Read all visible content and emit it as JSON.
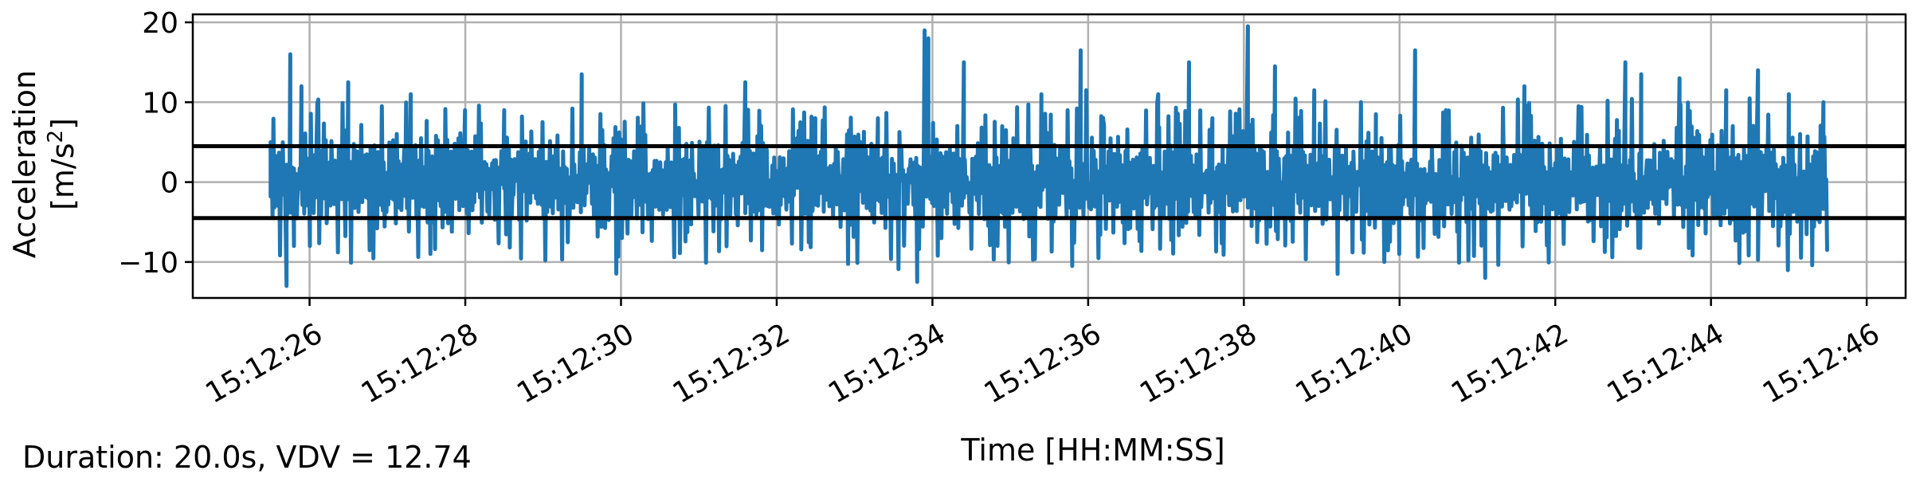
{
  "chart_data": {
    "type": "line",
    "xlabel": "Time [HH:MM:SS]",
    "ylabel_line1": "Acceleration",
    "ylabel_line2_prefix": "[m/s",
    "ylabel_line2_sup": "2",
    "ylabel_line2_suffix": "]",
    "x_start_seconds": 25.5,
    "x_end_seconds": 45.5,
    "xlim_seconds": [
      24.5,
      46.5
    ],
    "ylim": [
      -14.5,
      21
    ],
    "x_ticks": [
      "15:12:26",
      "15:12:28",
      "15:12:30",
      "15:12:32",
      "15:12:34",
      "15:12:36",
      "15:12:38",
      "15:12:40",
      "15:12:42",
      "15:12:44",
      "15:12:46"
    ],
    "y_ticks": [
      {
        "value": 20,
        "label": "20"
      },
      {
        "value": 10,
        "label": "10"
      },
      {
        "value": 0,
        "label": "0"
      },
      {
        "value": -10,
        "label": "−10"
      }
    ],
    "grid": true,
    "series": [
      {
        "color": "#1f77b4",
        "peaks": [
          {
            "t": 25.5,
            "v": 5
          },
          {
            "t": 25.6,
            "v": 0
          },
          {
            "t": 25.7,
            "v": -13
          },
          {
            "t": 25.75,
            "v": 16
          },
          {
            "t": 25.8,
            "v": -8
          },
          {
            "t": 25.9,
            "v": 12
          },
          {
            "t": 26.0,
            "v": -8
          },
          {
            "t": 26.1,
            "v": 10
          },
          {
            "t": 26.5,
            "v": 12.5
          },
          {
            "t": 27.3,
            "v": 11
          },
          {
            "t": 27.55,
            "v": -9
          },
          {
            "t": 28.0,
            "v": 9
          },
          {
            "t": 28.5,
            "v": 9
          },
          {
            "t": 29.5,
            "v": 13.5
          },
          {
            "t": 30.7,
            "v": 8
          },
          {
            "t": 31.6,
            "v": 12.5
          },
          {
            "t": 32.5,
            "v": 8
          },
          {
            "t": 33.3,
            "v": 8
          },
          {
            "t": 33.8,
            "v": -12.5
          },
          {
            "t": 33.9,
            "v": 19
          },
          {
            "t": 33.95,
            "v": 18
          },
          {
            "t": 34.4,
            "v": 15
          },
          {
            "t": 34.9,
            "v": 7
          },
          {
            "t": 35.4,
            "v": 11
          },
          {
            "t": 35.8,
            "v": -10.5
          },
          {
            "t": 35.9,
            "v": 16.5
          },
          {
            "t": 36.2,
            "v": 7
          },
          {
            "t": 36.9,
            "v": 11
          },
          {
            "t": 37.3,
            "v": 15
          },
          {
            "t": 37.6,
            "v": 8
          },
          {
            "t": 38.05,
            "v": 19.5
          },
          {
            "t": 38.4,
            "v": 14.5
          },
          {
            "t": 38.9,
            "v": 11.5
          },
          {
            "t": 39.7,
            "v": 8.5
          },
          {
            "t": 40.0,
            "v": -9
          },
          {
            "t": 40.2,
            "v": 16.5
          },
          {
            "t": 40.6,
            "v": 9
          },
          {
            "t": 41.1,
            "v": -12
          },
          {
            "t": 41.6,
            "v": 12
          },
          {
            "t": 42.3,
            "v": 9.5
          },
          {
            "t": 42.9,
            "v": 15
          },
          {
            "t": 43.1,
            "v": 13.5
          },
          {
            "t": 43.6,
            "v": 13
          },
          {
            "t": 44.2,
            "v": 11.5
          },
          {
            "t": 44.6,
            "v": 14
          },
          {
            "t": 45.0,
            "v": 11
          },
          {
            "t": 45.3,
            "v": -8
          },
          {
            "t": 45.45,
            "v": 10
          },
          {
            "t": 45.5,
            "v": -8.5
          }
        ]
      }
    ],
    "threshold_lines": [
      4.5,
      -4.5
    ],
    "threshold_color": "#000000"
  },
  "footer": {
    "text": "Duration: 20.0s, VDV = 12.74"
  }
}
